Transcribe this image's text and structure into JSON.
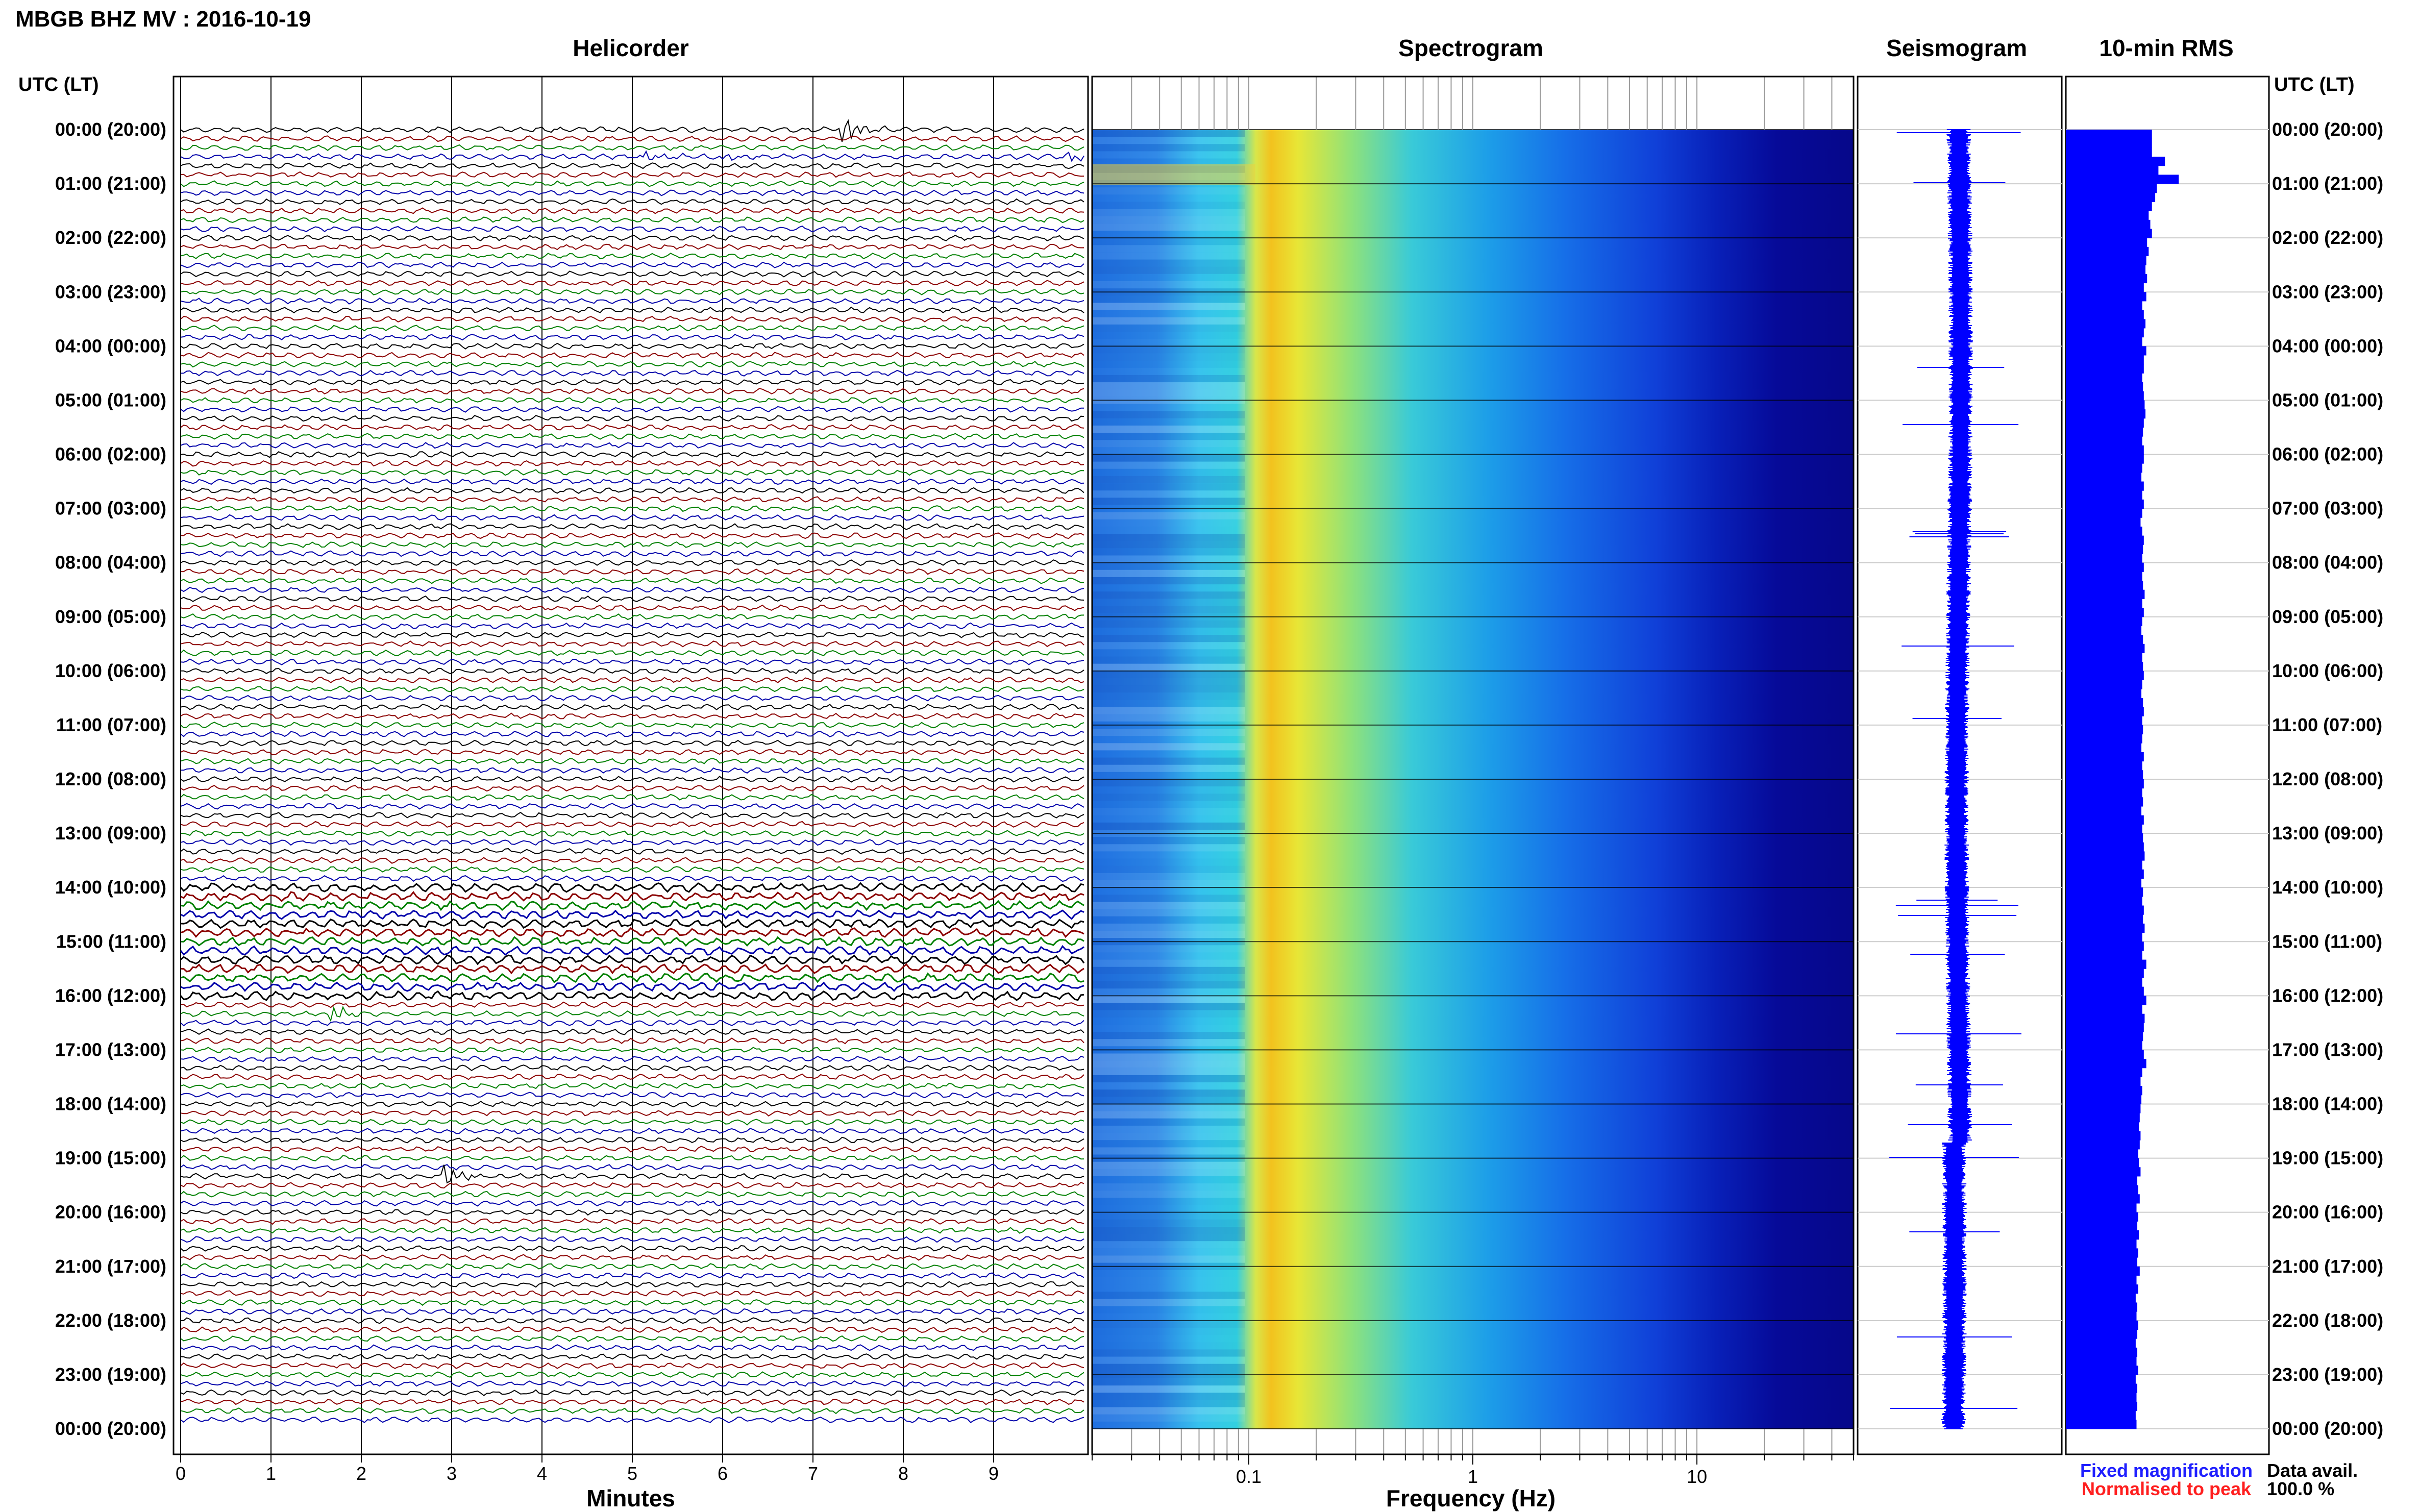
{
  "header": {
    "title": "MBGB BHZ MV : 2016-10-19",
    "utc_left": "UTC (LT)",
    "utc_right": "UTC (LT)"
  },
  "panels": {
    "helicorder": "Helicorder",
    "spectrogram": "Spectrogram",
    "seismogram": "Seismogram",
    "rms": "10-min RMS"
  },
  "footer": {
    "minutes": "Minutes",
    "frequency": "Frequency (Hz)",
    "fixed": "Fixed magnification",
    "normalised": "Normalised to peak",
    "avail_label": "Data avail.",
    "avail_value": "100.0 %"
  },
  "colors": {
    "fixed": "#1f1fff",
    "normalised": "#ff1f1f",
    "trace_cycle": [
      "#000000",
      "#8b0000",
      "#008000",
      "#0000aa"
    ],
    "rms_fill": "#0000ff"
  },
  "chart_data": [
    {
      "type": "line",
      "name": "helicorder",
      "xlabel": "Minutes",
      "xticks": [
        "0",
        "1",
        "2",
        "3",
        "4",
        "5",
        "6",
        "7",
        "8",
        "9"
      ],
      "xlim": [
        0,
        10
      ],
      "hour_labels": [
        "00:00 (20:00)",
        "01:00 (21:00)",
        "02:00 (22:00)",
        "03:00 (23:00)",
        "04:00 (00:00)",
        "05:00 (01:00)",
        "06:00 (02:00)",
        "07:00 (03:00)",
        "08:00 (04:00)",
        "09:00 (05:00)",
        "10:00 (06:00)",
        "11:00 (07:00)",
        "12:00 (08:00)",
        "13:00 (09:00)",
        "14:00 (10:00)",
        "15:00 (11:00)",
        "16:00 (12:00)",
        "17:00 (13:00)",
        "18:00 (14:00)",
        "19:00 (15:00)",
        "20:00 (16:00)",
        "21:00 (17:00)",
        "22:00 (18:00)",
        "23:00 (19:00)",
        "00:00 (20:00)"
      ],
      "rows": 144,
      "events": [
        {
          "minute": 7.3,
          "row": 0,
          "amp": 3.5
        },
        {
          "minute": 5.1,
          "row": 3,
          "amp": 1.2
        },
        {
          "minute": 6.0,
          "row": 3,
          "amp": 1.0
        },
        {
          "minute": 9.8,
          "row": 3,
          "amp": 1.2
        },
        {
          "minute": 1.6,
          "row": 98,
          "amp": 2.5
        },
        {
          "minute": 2.9,
          "row": 116,
          "amp": 2.5
        }
      ]
    },
    {
      "type": "heatmap",
      "name": "spectrogram",
      "xlabel": "Frequency (Hz)",
      "xscale": "log",
      "xlim": [
        0.02,
        50
      ],
      "xticks": [
        "0.1",
        "1",
        "10"
      ],
      "colormap": "jet"
    },
    {
      "type": "line",
      "name": "seismogram",
      "hours": 24
    },
    {
      "type": "bar",
      "name": "10-min RMS",
      "orientation": "horizontal",
      "hours": 24,
      "values": [
        0.62,
        0.62,
        0.62,
        0.78,
        0.7,
        0.95,
        0.68,
        0.66,
        0.62,
        0.58,
        0.6,
        0.62,
        0.56,
        0.58,
        0.55,
        0.54,
        0.56,
        0.52,
        0.55,
        0.5,
        0.52,
        0.54,
        0.52,
        0.5,
        0.55,
        0.52,
        0.52,
        0.5,
        0.51,
        0.52,
        0.53,
        0.54,
        0.52,
        0.51,
        0.5,
        0.52,
        0.52,
        0.5,
        0.49,
        0.52,
        0.5,
        0.52,
        0.5,
        0.48,
        0.5,
        0.52,
        0.51,
        0.5,
        0.52,
        0.5,
        0.51,
        0.53,
        0.5,
        0.52,
        0.5,
        0.49,
        0.51,
        0.53,
        0.5,
        0.51,
        0.52,
        0.5,
        0.49,
        0.51,
        0.52,
        0.5,
        0.51,
        0.5,
        0.49,
        0.52,
        0.5,
        0.51,
        0.52,
        0.5,
        0.51,
        0.49,
        0.52,
        0.5,
        0.51,
        0.52,
        0.53,
        0.5,
        0.52,
        0.49,
        0.51,
        0.5,
        0.52,
        0.51,
        0.53,
        0.5,
        0.52,
        0.5,
        0.55,
        0.52,
        0.5,
        0.52,
        0.55,
        0.5,
        0.53,
        0.52,
        0.51,
        0.5,
        0.52,
        0.55,
        0.5,
        0.48,
        0.5,
        0.49,
        0.48,
        0.47,
        0.46,
        0.48,
        0.47,
        0.45,
        0.46,
        0.48,
        0.44,
        0.45,
        0.47,
        0.43,
        0.45,
        0.44,
        0.46,
        0.43,
        0.45,
        0.44,
        0.47,
        0.43,
        0.45,
        0.42,
        0.44,
        0.43,
        0.45,
        0.44,
        0.42,
        0.44,
        0.43,
        0.45,
        0.42,
        0.44,
        0.43,
        0.44,
        0.42,
        0.43
      ],
      "xlim": [
        0,
        1
      ]
    }
  ]
}
